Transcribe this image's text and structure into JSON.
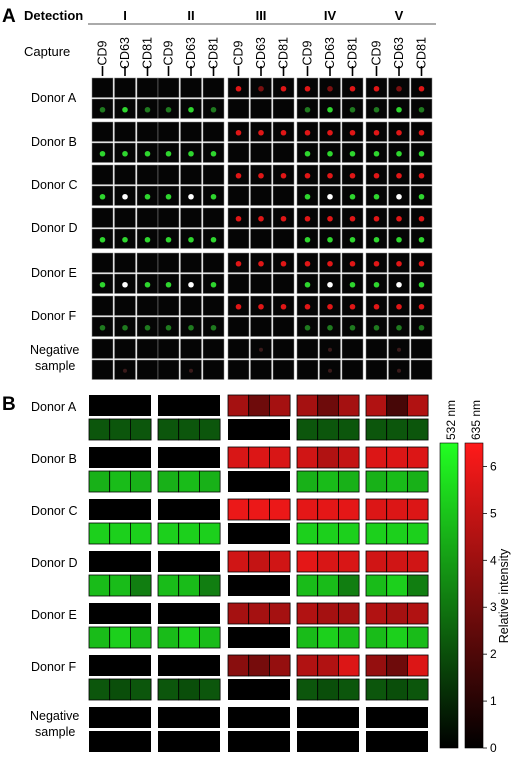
{
  "panel_a": {
    "letter": "A",
    "detection_label": "Detection",
    "groups": [
      "I",
      "II",
      "III",
      "IV",
      "V"
    ],
    "capture_label": "Capture",
    "markers": [
      "CD9",
      "CD63",
      "CD81"
    ],
    "rows": [
      "Donor A",
      "Donor B",
      "Donor C",
      "Donor D",
      "Donor E",
      "Donor F"
    ],
    "negative_label": [
      "Negative",
      "sample"
    ],
    "cells": [
      {
        "top": [
          [
            "n",
            "n",
            "n"
          ],
          [
            "n",
            "n",
            "n"
          ],
          [
            "r",
            "dr",
            "r"
          ],
          [
            "r",
            "dr",
            "r"
          ],
          [
            "r",
            "dr",
            "r"
          ]
        ],
        "bottom": [
          [
            "dg",
            "g",
            "dg"
          ],
          [
            "dg",
            "g",
            "dg"
          ],
          [
            "n",
            "n",
            "n"
          ],
          [
            "dg",
            "g",
            "dg"
          ],
          [
            "dg",
            "g",
            "dg"
          ]
        ]
      },
      {
        "top": [
          [
            "n",
            "n",
            "n"
          ],
          [
            "n",
            "n",
            "n"
          ],
          [
            "r",
            "r",
            "r"
          ],
          [
            "r",
            "r",
            "r"
          ],
          [
            "r",
            "r",
            "r"
          ]
        ],
        "bottom": [
          [
            "g",
            "g",
            "g"
          ],
          [
            "g",
            "g",
            "g"
          ],
          [
            "n",
            "n",
            "n"
          ],
          [
            "g",
            "g",
            "g"
          ],
          [
            "g",
            "g",
            "g"
          ]
        ]
      },
      {
        "top": [
          [
            "n",
            "n",
            "n"
          ],
          [
            "n",
            "n",
            "n"
          ],
          [
            "r",
            "r",
            "r"
          ],
          [
            "r",
            "r",
            "r"
          ],
          [
            "r",
            "r",
            "r"
          ]
        ],
        "bottom": [
          [
            "g",
            "w",
            "g"
          ],
          [
            "g",
            "w",
            "g"
          ],
          [
            "n",
            "n",
            "n"
          ],
          [
            "g",
            "w",
            "g"
          ],
          [
            "g",
            "w",
            "g"
          ]
        ]
      },
      {
        "top": [
          [
            "n",
            "n",
            "n"
          ],
          [
            "n",
            "n",
            "n"
          ],
          [
            "r",
            "r",
            "r"
          ],
          [
            "r",
            "r",
            "r"
          ],
          [
            "r",
            "r",
            "r"
          ]
        ],
        "bottom": [
          [
            "g",
            "g",
            "g"
          ],
          [
            "g",
            "g",
            "g"
          ],
          [
            "n",
            "n",
            "n"
          ],
          [
            "g",
            "g",
            "g"
          ],
          [
            "g",
            "g",
            "g"
          ]
        ]
      },
      {
        "top": [
          [
            "n",
            "n",
            "n"
          ],
          [
            "n",
            "n",
            "n"
          ],
          [
            "r",
            "r",
            "r"
          ],
          [
            "r",
            "r",
            "r"
          ],
          [
            "r",
            "r",
            "r"
          ]
        ],
        "bottom": [
          [
            "g",
            "w",
            "g"
          ],
          [
            "g",
            "w",
            "g"
          ],
          [
            "n",
            "n",
            "n"
          ],
          [
            "g",
            "w",
            "g"
          ],
          [
            "g",
            "w",
            "g"
          ]
        ]
      },
      {
        "top": [
          [
            "n",
            "n",
            "n"
          ],
          [
            "n",
            "n",
            "n"
          ],
          [
            "r",
            "r",
            "r"
          ],
          [
            "r",
            "r",
            "r"
          ],
          [
            "r",
            "r",
            "r"
          ]
        ],
        "bottom": [
          [
            "dg",
            "dg",
            "dg"
          ],
          [
            "dg",
            "dg",
            "dg"
          ],
          [
            "n",
            "n",
            "n"
          ],
          [
            "dg",
            "dg",
            "dg"
          ],
          [
            "dg",
            "dg",
            "dg"
          ]
        ]
      },
      {
        "top": [
          [
            "n",
            "n",
            "n"
          ],
          [
            "n",
            "n",
            "n"
          ],
          [
            "n",
            "f",
            "n"
          ],
          [
            "n",
            "f",
            "n"
          ],
          [
            "n",
            "f",
            "n"
          ]
        ],
        "bottom": [
          [
            "n",
            "f",
            "n"
          ],
          [
            "n",
            "f",
            "n"
          ],
          [
            "n",
            "n",
            "n"
          ],
          [
            "n",
            "f",
            "n"
          ],
          [
            "n",
            "f",
            "n"
          ]
        ]
      }
    ],
    "spot_colors": {
      "r": "#e01616",
      "dr": "#7a1010",
      "g": "#2ed62e",
      "dg": "#1f7a1f",
      "w": "#ffffff",
      "f": "#3a1a1a",
      "n": "#0a0a0a"
    }
  },
  "panel_b": {
    "letter": "B",
    "rows": [
      "Donor A",
      "Donor B",
      "Donor C",
      "Donor D",
      "Donor E",
      "Donor F"
    ],
    "negative_label": [
      "Negative",
      "sample"
    ],
    "heat_red": [
      [
        [
          0,
          0,
          0
        ],
        [
          0,
          0,
          0
        ],
        [
          4.2,
          2.8,
          4.2
        ],
        [
          4.2,
          2.8,
          4.2
        ],
        [
          4.5,
          1.8,
          4.5
        ]
      ],
      [
        [
          0,
          0,
          0
        ],
        [
          0,
          0,
          0
        ],
        [
          5.5,
          5.6,
          5.5
        ],
        [
          5.3,
          4.5,
          5.0
        ],
        [
          5.6,
          5.6,
          5.6
        ]
      ],
      [
        [
          0,
          0,
          0
        ],
        [
          0,
          0,
          0
        ],
        [
          6.0,
          6.0,
          6.0
        ],
        [
          5.8,
          5.8,
          5.8
        ],
        [
          5.6,
          5.6,
          5.6
        ]
      ],
      [
        [
          0,
          0,
          0
        ],
        [
          0,
          0,
          0
        ],
        [
          5.3,
          5.0,
          5.3
        ],
        [
          5.8,
          5.5,
          5.5
        ],
        [
          5.3,
          5.3,
          5.3
        ]
      ],
      [
        [
          0,
          0,
          0
        ],
        [
          0,
          0,
          0
        ],
        [
          4.2,
          4.2,
          4.2
        ],
        [
          4.5,
          4.2,
          4.2
        ],
        [
          4.5,
          4.2,
          4.5
        ]
      ],
      [
        [
          0,
          0,
          0
        ],
        [
          0,
          0,
          0
        ],
        [
          3.5,
          3.0,
          3.8
        ],
        [
          4.5,
          4.5,
          5.6
        ],
        [
          3.8,
          2.8,
          5.6
        ]
      ],
      [
        [
          0,
          0,
          0
        ],
        [
          0,
          0,
          0
        ],
        [
          0,
          0,
          0
        ],
        [
          0,
          0,
          0
        ],
        [
          0,
          0,
          0
        ]
      ]
    ],
    "heat_green": [
      [
        [
          2.2,
          2.2,
          2.2
        ],
        [
          2.2,
          2.2,
          2.2
        ],
        [
          0,
          0,
          0
        ],
        [
          2.2,
          2.2,
          2.2
        ],
        [
          2.2,
          2.2,
          2.2
        ]
      ],
      [
        [
          4.5,
          4.8,
          4.5
        ],
        [
          4.5,
          4.8,
          4.5
        ],
        [
          0,
          0,
          0
        ],
        [
          4.5,
          4.8,
          4.5
        ],
        [
          4.5,
          4.8,
          4.5
        ]
      ],
      [
        [
          5.3,
          5.3,
          5.3
        ],
        [
          5.3,
          5.3,
          5.3
        ],
        [
          0,
          0,
          0
        ],
        [
          5.3,
          5.3,
          5.3
        ],
        [
          5.3,
          5.3,
          5.3
        ]
      ],
      [
        [
          4.8,
          4.8,
          3.2
        ],
        [
          4.8,
          4.8,
          3.2
        ],
        [
          0,
          0,
          0
        ],
        [
          4.8,
          4.8,
          3.2
        ],
        [
          4.8,
          5.3,
          3.2
        ]
      ],
      [
        [
          4.8,
          5.3,
          4.8
        ],
        [
          4.8,
          5.3,
          4.8
        ],
        [
          0,
          0,
          0
        ],
        [
          4.8,
          5.3,
          4.8
        ],
        [
          4.8,
          5.3,
          4.8
        ]
      ],
      [
        [
          2.2,
          2.0,
          2.2
        ],
        [
          2.2,
          2.0,
          2.2
        ],
        [
          0,
          0,
          0
        ],
        [
          2.2,
          2.0,
          2.2
        ],
        [
          2.2,
          2.0,
          2.2
        ]
      ],
      [
        [
          0,
          0,
          0
        ],
        [
          0,
          0,
          0
        ],
        [
          0,
          0,
          0
        ],
        [
          0,
          0,
          0
        ],
        [
          0,
          0,
          0
        ]
      ]
    ],
    "colorbar": {
      "green_label": "532 nm",
      "red_label": "635 nm",
      "ticks": [
        "0",
        "1",
        "2",
        "3",
        "4",
        "5",
        "6"
      ],
      "axis_label": "Relative intensity",
      "min": 0,
      "max": 6.5,
      "green_color": "#22ff22",
      "red_color": "#ff1a1a"
    }
  }
}
